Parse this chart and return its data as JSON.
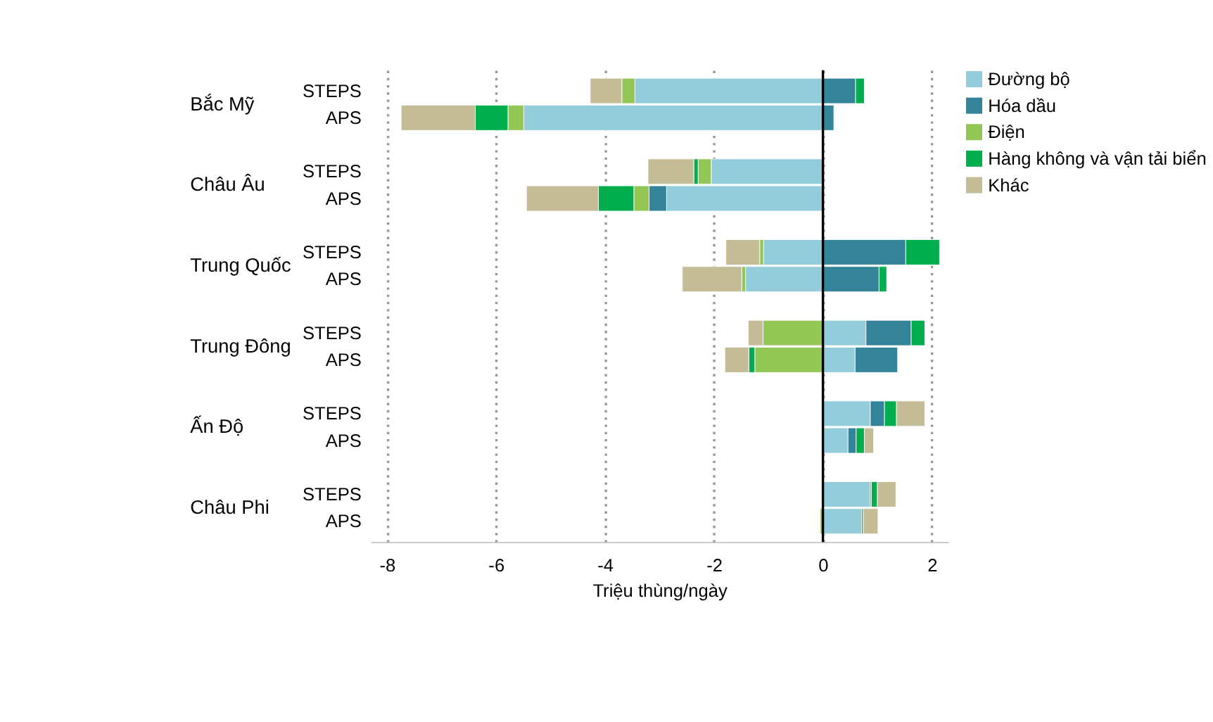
{
  "chart_data": {
    "type": "bar",
    "orientation": "horizontal",
    "stacked": true,
    "categories": [
      "STEPS",
      "APS",
      "STEPS",
      "APS",
      "STEPS",
      "APS",
      "STEPS",
      "APS",
      "STEPS",
      "APS",
      "STEPS",
      "APS"
    ],
    "annotations": [
      "Bắc Mỹ",
      "Châu Âu",
      "Trung Quốc",
      "Trung Đông",
      "Ấn Độ",
      "Châu Phi"
    ],
    "xlabel": "Triệu thùng/ngày",
    "xlim": [
      -8.3,
      2.3
    ],
    "xticks": [
      -8,
      -6,
      -4,
      -2,
      0,
      2
    ],
    "grid": "x",
    "legend": "right",
    "ref_lines": [
      {
        "axis": "x",
        "value": 0,
        "color": "#000000"
      }
    ],
    "series": [
      {
        "name": "Đường bộ",
        "color": "#93ccdb",
        "values": [
          -3.45,
          -5.49,
          -2.05,
          -2.87,
          -1.09,
          -1.42,
          0.79,
          0.59,
          0.87,
          0.46,
          0.87,
          0.71
        ]
      },
      {
        "name": "Hóa dầu",
        "color": "#33849b",
        "values": [
          0.6,
          0.2,
          null,
          -0.32,
          1.52,
          1.03,
          0.83,
          0.78,
          0.26,
          0.15,
          0.02,
          null
        ]
      },
      {
        "name": "Điện",
        "color": "#93c755",
        "values": [
          -0.24,
          -0.29,
          -0.24,
          -0.28,
          -0.07,
          -0.07,
          -1.1,
          -1.25,
          null,
          null,
          null,
          -0.05
        ]
      },
      {
        "name": "Hàng không và vận tải biển",
        "color": "#00ae4d",
        "values": [
          0.16,
          -0.6,
          -0.08,
          -0.65,
          0.62,
          0.14,
          0.25,
          -0.11,
          0.22,
          0.15,
          0.11,
          0.03
        ]
      },
      {
        "name": "Khác",
        "color": "#c4bc96",
        "values": [
          -0.58,
          -1.36,
          -0.84,
          -1.32,
          -0.62,
          -1.09,
          -0.27,
          -0.44,
          0.52,
          0.17,
          0.34,
          0.27
        ]
      }
    ]
  }
}
